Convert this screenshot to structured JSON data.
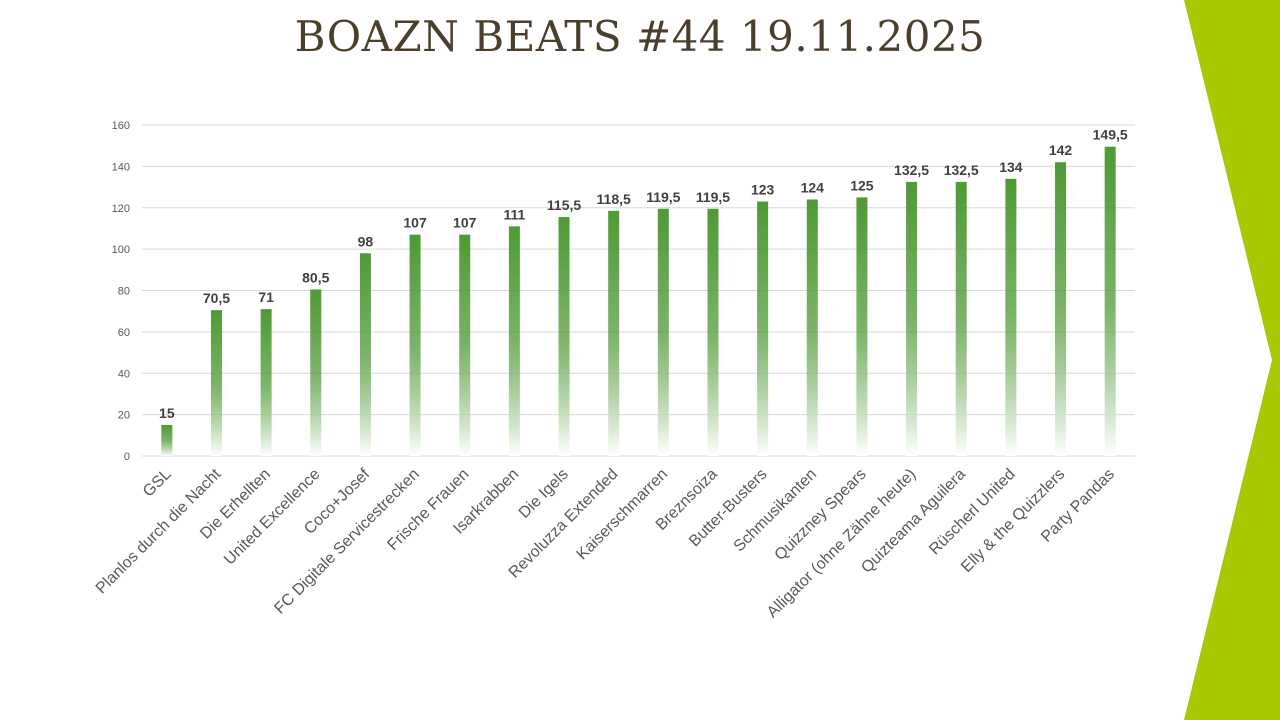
{
  "title": "BOAZN BEATS #44 19.11.2025",
  "colors": {
    "bar": "#4e9a35",
    "bar_fade": "#ffffff",
    "grid": "#d9d9d9",
    "axis_text": "#595959",
    "label_text": "#404040",
    "title_text": "#4a3e2c",
    "accent": "#a8c800"
  },
  "chart_data": {
    "type": "bar",
    "title": "",
    "xlabel": "",
    "ylabel": "",
    "ylim": [
      0,
      160
    ],
    "yticks": [
      0,
      20,
      40,
      60,
      80,
      100,
      120,
      140,
      160
    ],
    "grid": true,
    "legend": "none",
    "categories": [
      "GSL",
      "Planlos durch die Nacht",
      "Die Erhellten",
      "United Excellence",
      "Coco+Josef",
      "FC Digitale Servicestrecken",
      "Frische Frauen",
      "Isarkrabben",
      "Die Igels",
      "Revoluzza Extended",
      "Kaiserschmarren",
      "Breznsoiza",
      "Butter-Busters",
      "Schmusikanten",
      "Quizzney Spears",
      "Alligator (ohne Zähne heute)",
      "Quizteama Aguilera",
      "Rüscherl United",
      "Elly & the Quizzlers",
      "Party Pandas"
    ],
    "values": [
      15,
      70.5,
      71,
      80.5,
      98,
      107,
      107,
      111,
      115.5,
      118.5,
      119.5,
      119.5,
      123,
      124,
      125,
      132.5,
      132.5,
      134,
      142,
      149.5
    ],
    "data_labels": [
      "15",
      "70,5",
      "71",
      "80,5",
      "98",
      "107",
      "107",
      "111",
      "115,5",
      "118,5",
      "119,5",
      "119,5",
      "123",
      "124",
      "125",
      "132,5",
      "132,5",
      "134",
      "142",
      "149,5"
    ]
  }
}
